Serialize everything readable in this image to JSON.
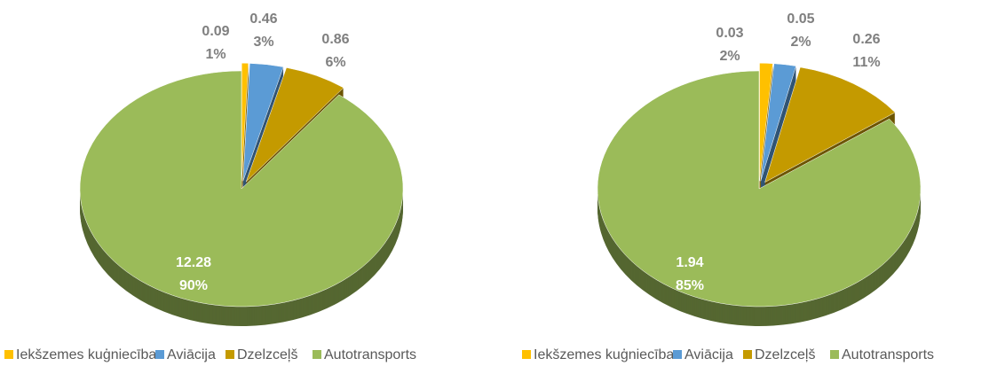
{
  "chart_data": [
    {
      "type": "pie",
      "categories": [
        "Iekšzemes kuģniecība",
        "Aviācija",
        "Dzelzceļš",
        "Autotransports"
      ],
      "values": [
        0.09,
        0.46,
        0.86,
        12.28
      ],
      "percent_labels": [
        "1%",
        "3%",
        "6%",
        "90%"
      ],
      "colors": [
        "#ffc000",
        "#5b9bd5",
        "#c49a00",
        "#9bbb59"
      ],
      "legend": "bottom"
    },
    {
      "type": "pie",
      "categories": [
        "Iekšzemes kuģniecība",
        "Aviācija",
        "Dzelzceļš",
        "Autotransports"
      ],
      "values": [
        0.03,
        0.05,
        0.26,
        1.94
      ],
      "percent_labels": [
        "2%",
        "2%",
        "11%",
        "85%"
      ],
      "colors": [
        "#ffc000",
        "#5b9bd5",
        "#c49a00",
        "#9bbb59"
      ],
      "legend": "bottom"
    }
  ]
}
